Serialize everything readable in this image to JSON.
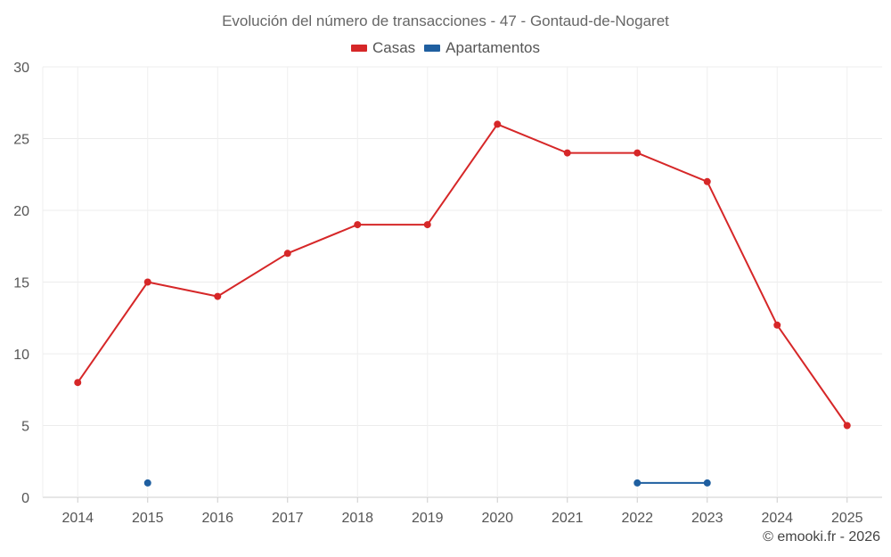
{
  "chart_data": {
    "type": "line",
    "title": "Evolución del número de transacciones - 47 - Gontaud-de-Nogaret",
    "xlabel": "",
    "ylabel": "",
    "categories": [
      "2014",
      "2015",
      "2016",
      "2017",
      "2018",
      "2019",
      "2020",
      "2021",
      "2022",
      "2023",
      "2024",
      "2025"
    ],
    "ylim": [
      0,
      30
    ],
    "yticks": [
      0,
      5,
      10,
      15,
      20,
      25,
      30
    ],
    "grid": true,
    "legend_position": "top-center",
    "series": [
      {
        "name": "Casas",
        "color": "#d62728",
        "values": [
          8,
          15,
          14,
          17,
          19,
          19,
          26,
          24,
          24,
          22,
          12,
          5
        ]
      },
      {
        "name": "Apartamentos",
        "color": "#1f5fa0",
        "values": [
          null,
          1,
          null,
          null,
          null,
          null,
          null,
          null,
          1,
          1,
          null,
          null
        ]
      }
    ]
  },
  "footer": {
    "copyright": "© emooki.fr - 2026"
  }
}
